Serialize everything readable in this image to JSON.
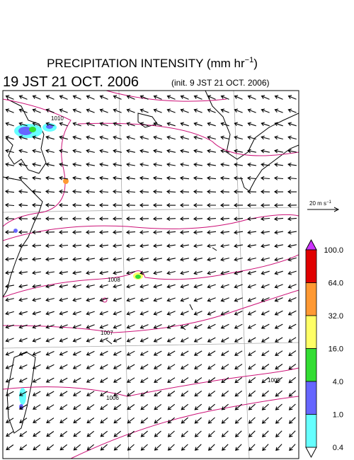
{
  "title": {
    "main": "PRECIPITATION INTENSITY (mm hr",
    "exponent": "−1",
    "closing": ")"
  },
  "valid_time": "19 JST 21 OCT. 2006",
  "init_time": "(init. 9 JST 21 OCT. 2006)",
  "wind_scale": {
    "main": "20 m s",
    "exponent": "−1"
  },
  "isobar_labels": [
    "1010",
    "1008",
    "1007",
    "1006",
    "1005"
  ],
  "colorbar": {
    "labels": [
      "100.0",
      "64.0",
      "32.0",
      "16.0",
      "4.0",
      "1.0",
      "0.4"
    ],
    "colors": [
      "#e00000",
      "#ff9933",
      "#ffff66",
      "#33dd33",
      "#6666ff",
      "#66ffff"
    ],
    "over_color": "#cc33ff",
    "under_color": "#ffffff"
  }
}
